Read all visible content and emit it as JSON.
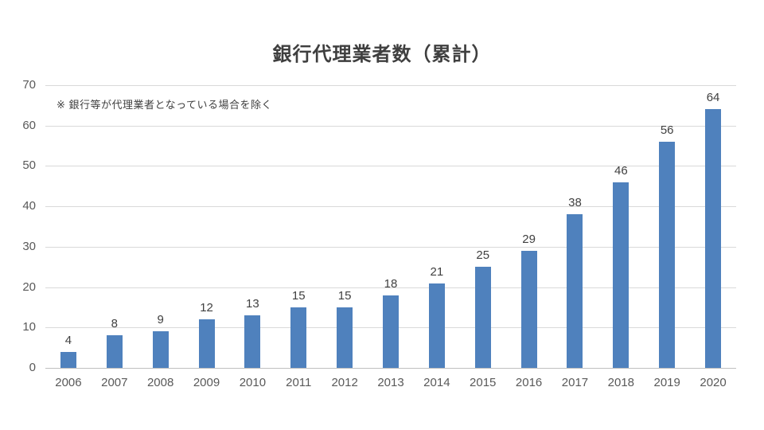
{
  "chart_data": {
    "type": "bar",
    "title": "銀行代理業者数（累計）",
    "note": "※ 銀行等が代理業者となっている場合を除く",
    "categories": [
      "2006",
      "2007",
      "2008",
      "2009",
      "2010",
      "2011",
      "2012",
      "2013",
      "2014",
      "2015",
      "2016",
      "2017",
      "2018",
      "2019",
      "2020"
    ],
    "values": [
      4,
      8,
      9,
      12,
      13,
      15,
      15,
      18,
      21,
      25,
      29,
      38,
      46,
      56,
      64
    ],
    "xlabel": "",
    "ylabel": "",
    "ylim": [
      0,
      70
    ],
    "yticks": [
      0,
      10,
      20,
      30,
      40,
      50,
      60,
      70
    ],
    "grid": true,
    "legend": "none",
    "bar_color": "#4f81bd",
    "gridline_color": "#d9d9d9",
    "axis_line_color": "#bfbfbf",
    "tick_label_color": "#595959",
    "data_label_color": "#404040",
    "title_color": "#3f3f3f",
    "background_color": "#ffffff"
  }
}
